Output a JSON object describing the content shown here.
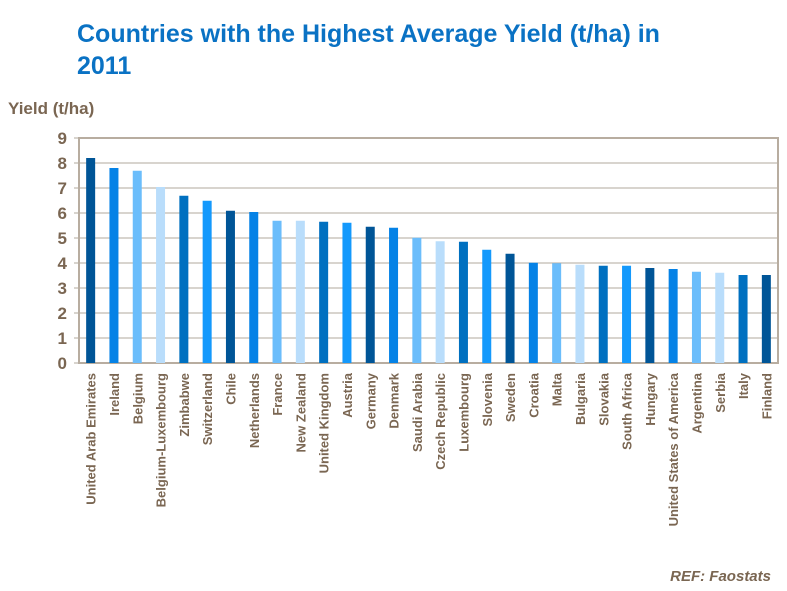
{
  "chart_data": {
    "type": "bar",
    "title": "Countries with the Highest Average Yield (t/ha) in 2011",
    "ylabel": "Yield (t/ha)",
    "xlabel": "",
    "ylim": [
      0,
      9
    ],
    "yticks": [
      "0",
      "1",
      "2",
      "3",
      "4",
      "5",
      "6",
      "7",
      "8",
      "9"
    ],
    "grid": true,
    "categories": [
      "United Arab Emirates",
      "Ireland",
      "Belgium",
      "Belgium-Luxembourg",
      "Zimbabwe",
      "Switzerland",
      "Chile",
      "Netherlands",
      "France",
      "New Zealand",
      "United Kingdom",
      "Austria",
      "Germany",
      "Denmark",
      "Saudi Arabia",
      "Czech Republic",
      "Luxembourg",
      "Slovenia",
      "Sweden",
      "Croatia",
      "Malta",
      "Bulgaria",
      "Slovakia",
      "South Africa",
      "Hungary",
      "United States of America",
      "Argentina",
      "Serbia",
      "Italy",
      "Finland"
    ],
    "values": [
      8.2,
      7.8,
      7.69,
      7.04,
      6.69,
      6.49,
      6.09,
      6.04,
      5.69,
      5.69,
      5.65,
      5.61,
      5.45,
      5.41,
      5.01,
      4.87,
      4.85,
      4.53,
      4.37,
      4.01,
      3.99,
      3.93,
      3.89,
      3.89,
      3.8,
      3.76,
      3.65,
      3.61,
      3.52,
      3.52
    ],
    "colors": [
      "#005597",
      "#0582e6",
      "#6bbdfb",
      "#b9ddfb",
      "#0070c0",
      "#1499fc",
      "#005597",
      "#0582e6",
      "#6bbdfb",
      "#b9ddfb",
      "#0070c0",
      "#1499fc",
      "#005597",
      "#0582e6",
      "#6bbdfb",
      "#b9ddfb",
      "#0070c0",
      "#1499fc",
      "#005597",
      "#0582e6",
      "#6bbdfb",
      "#b9ddfb",
      "#0070c0",
      "#1499fc",
      "#005597",
      "#0582e6",
      "#6bbdfb",
      "#b9ddfb",
      "#0070c0",
      "#005597"
    ]
  },
  "reference": "REF: Faostats"
}
